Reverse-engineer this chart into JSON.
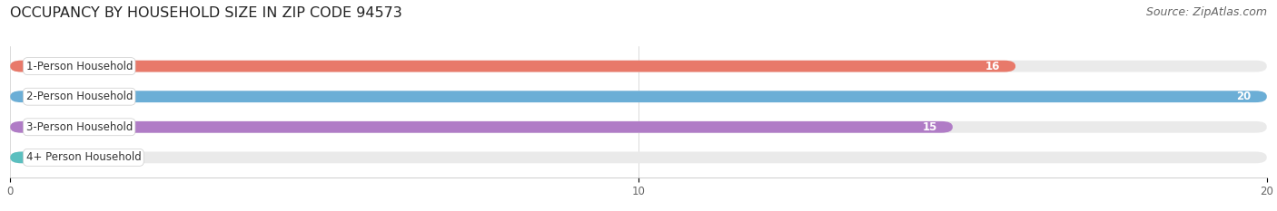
{
  "title": "OCCUPANCY BY HOUSEHOLD SIZE IN ZIP CODE 94573",
  "source": "Source: ZipAtlas.com",
  "categories": [
    "1-Person Household",
    "2-Person Household",
    "3-Person Household",
    "4+ Person Household"
  ],
  "values": [
    16,
    20,
    15,
    0
  ],
  "bar_colors": [
    "#E8796A",
    "#6BAED6",
    "#B07CC6",
    "#5BBFBF"
  ],
  "xlim": [
    0,
    20
  ],
  "xticks": [
    0,
    10,
    20
  ],
  "background_color": "#ffffff",
  "bar_bg_color": "#EAEAEA",
  "title_fontsize": 11.5,
  "source_fontsize": 9,
  "bar_height": 0.38,
  "bar_label_fontsize": 8.5,
  "category_fontsize": 8.5
}
